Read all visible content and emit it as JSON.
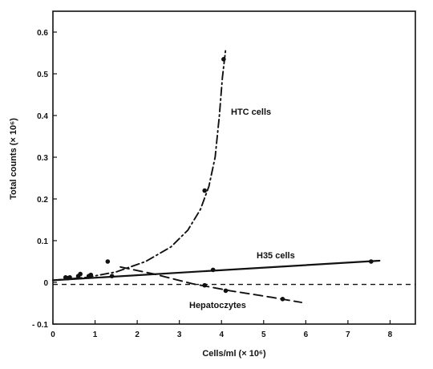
{
  "chart_data": {
    "type": "line",
    "title": "",
    "xlabel": "Cells/ml (× 10⁶)",
    "ylabel": "Total counts (× 10⁶)",
    "xlim": [
      0,
      8.6
    ],
    "ylim": [
      -0.1,
      0.65
    ],
    "x_ticks": [
      0,
      1,
      2,
      3,
      4,
      5,
      6,
      7,
      8
    ],
    "y_ticks": [
      -0.1,
      0,
      0.1,
      0.2,
      0.3,
      0.4,
      0.5,
      0.6
    ],
    "x_tick_labels": [
      "0",
      "1",
      "2",
      "3",
      "4",
      "5",
      "6",
      "7",
      "8"
    ],
    "y_tick_labels": [
      "- 0.1",
      "0",
      "0.1",
      "0.2",
      "0.3",
      "0.4",
      "0.5",
      "0.6"
    ],
    "grid": false,
    "legend": "none",
    "baseline": {
      "y": -0.005,
      "style": "dashed"
    },
    "series": [
      {
        "name": "HTC cells",
        "style": "dash-dot",
        "color": "#111111",
        "points": [
          [
            0.35,
            0.01
          ],
          [
            0.65,
            0.02
          ],
          [
            0.85,
            0.015
          ],
          [
            1.3,
            0.05
          ],
          [
            3.6,
            0.22
          ],
          [
            4.05,
            0.535
          ]
        ],
        "curve": [
          [
            0,
            0.005
          ],
          [
            0.8,
            0.012
          ],
          [
            1.5,
            0.025
          ],
          [
            2.2,
            0.05
          ],
          [
            2.8,
            0.085
          ],
          [
            3.2,
            0.125
          ],
          [
            3.5,
            0.175
          ],
          [
            3.7,
            0.23
          ],
          [
            3.85,
            0.3
          ],
          [
            3.95,
            0.4
          ],
          [
            4.02,
            0.49
          ],
          [
            4.1,
            0.56
          ]
        ]
      },
      {
        "name": "H35 cells",
        "style": "solid",
        "color": "#111111",
        "points": [
          [
            0.3,
            0.012
          ],
          [
            0.6,
            0.015
          ],
          [
            0.9,
            0.018
          ],
          [
            3.8,
            0.03
          ],
          [
            7.55,
            0.05
          ]
        ],
        "curve": [
          [
            0,
            0.005
          ],
          [
            7.75,
            0.052
          ]
        ]
      },
      {
        "name": "Hepatoczytes",
        "style": "long-dash",
        "color": "#111111",
        "points": [
          [
            0.4,
            0.012
          ],
          [
            1.4,
            0.015
          ],
          [
            3.6,
            -0.007
          ],
          [
            4.1,
            -0.02
          ],
          [
            5.45,
            -0.04
          ]
        ],
        "curve": [
          [
            1.6,
            0.037
          ],
          [
            2.4,
            0.02
          ],
          [
            3.3,
            -0.003
          ],
          [
            4.2,
            -0.02
          ],
          [
            5.2,
            -0.036
          ],
          [
            5.9,
            -0.048
          ]
        ]
      }
    ]
  }
}
